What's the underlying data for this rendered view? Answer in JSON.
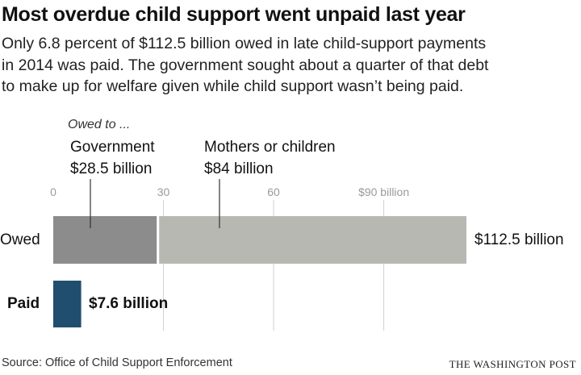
{
  "header": {
    "title": "Most overdue child support went unpaid last year",
    "subtitle_lines": [
      "Only 6.8 percent of $112.5 billion owed in late child-support payments",
      "in 2014 was paid. The government sought about a quarter of that debt",
      "to make up for welfare given while child support wasn’t being paid."
    ]
  },
  "annotations": {
    "owed_to": "Owed to ...",
    "government": {
      "name": "Government",
      "amount": "$28.5 billion"
    },
    "mothers": {
      "name": "Mothers or children",
      "amount": "$84 billion"
    }
  },
  "bar_labels": {
    "owed_category": "Owed",
    "paid_category": "Paid",
    "owed_value": "$112.5 billion",
    "paid_value": "$7.6 billion"
  },
  "footer": {
    "source": "Source: Office of Child Support Enforcement",
    "credit": "THE WASHINGTON POST"
  },
  "colors": {
    "government": "#8c8c8c",
    "mothers": "#b8b8b3",
    "paid": "#1f4e6e",
    "gridline": "#d0d0d0"
  },
  "chart_data": {
    "type": "bar",
    "orientation": "horizontal",
    "categories": [
      "Owed",
      "Paid"
    ],
    "series": [
      {
        "name": "Government",
        "values": [
          28.5,
          0
        ]
      },
      {
        "name": "Mothers or children",
        "values": [
          84,
          0
        ]
      },
      {
        "name": "Paid",
        "values": [
          0,
          7.6
        ]
      }
    ],
    "stacked": true,
    "xlim": [
      0,
      112.5
    ],
    "xticks": [
      0,
      30,
      60,
      90
    ],
    "xtick_labels": [
      "0",
      "30",
      "60",
      "$90 billion"
    ],
    "grid": true
  }
}
